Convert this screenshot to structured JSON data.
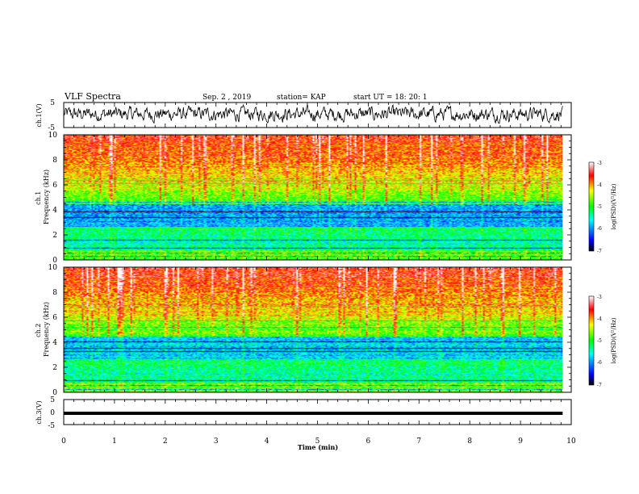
{
  "header": {
    "title": "VLF Spectra",
    "date": "Sep. 2 , 2019",
    "station": "station= KAP",
    "start": "start UT = 18: 20: 1"
  },
  "chart_data": [
    {
      "type": "line",
      "name": "ch1-waveform",
      "ylabel": "ch.1(V)",
      "ylim": [
        -5,
        5
      ],
      "yticks": [
        "5",
        "-5"
      ],
      "xlim": [
        0,
        10
      ],
      "x_extent": [
        0,
        9.83
      ],
      "description_values": "noise waveform roughly between -3 and 4 V"
    },
    {
      "type": "heatmap",
      "name": "ch1-spectrogram",
      "ylabel": "ch.1\nFrequency (kHz)",
      "ylim": [
        0,
        10
      ],
      "yticks": [
        "0",
        "2",
        "4",
        "6",
        "8",
        "10"
      ],
      "xlim": [
        0,
        10
      ],
      "x_extent": [
        0,
        9.83
      ],
      "colorbar": {
        "label": "log(PSD)(V²/Hz)",
        "range": [
          -7,
          -3
        ],
        "ticks": [
          "-3",
          "-4",
          "-5",
          "-6",
          "-7"
        ]
      }
    },
    {
      "type": "heatmap",
      "name": "ch2-spectrogram",
      "ylabel": "ch.2\nFrequency (kHz)",
      "ylim": [
        0,
        10
      ],
      "yticks": [
        "0",
        "2",
        "4",
        "6",
        "8",
        "10"
      ],
      "xlim": [
        0,
        10
      ],
      "x_extent": [
        0,
        9.83
      ],
      "colorbar": {
        "label": "log(PSD)(V²/Hz)",
        "range": [
          -7,
          -3
        ],
        "ticks": [
          "-3",
          "-4",
          "-5",
          "-6",
          "-7"
        ]
      }
    },
    {
      "type": "line",
      "name": "ch3-signal",
      "ylabel": "ch.3(V)",
      "ylim": [
        -5,
        5
      ],
      "yticks": [
        "5",
        "0",
        "-5"
      ],
      "xlim": [
        0,
        10
      ],
      "x_extent": [
        0,
        9.83
      ],
      "values_constant": -0.5
    }
  ],
  "xaxis": {
    "label": "Time (min)",
    "ticks": [
      "0",
      "1",
      "2",
      "3",
      "4",
      "5",
      "6",
      "7",
      "8",
      "9",
      "10"
    ]
  },
  "colors": {
    "waveform": "#000000",
    "colormap": [
      "#000000",
      "#0000ff",
      "#00ffff",
      "#00ff00",
      "#ffff00",
      "#ff8000",
      "#ff0000",
      "#ffffff"
    ]
  }
}
